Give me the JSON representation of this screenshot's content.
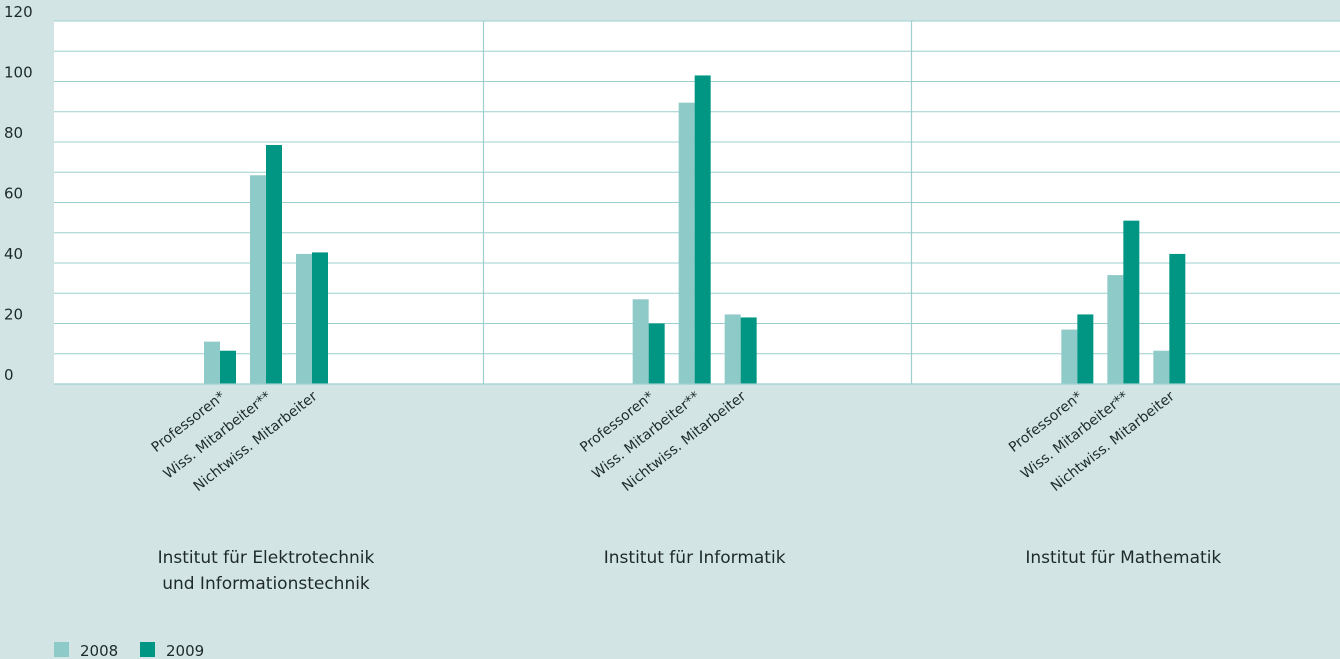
{
  "chart_data": {
    "type": "bar",
    "ylim": [
      0,
      120
    ],
    "yticks": [
      "0",
      "20",
      "40",
      "60",
      "80",
      "100",
      "120"
    ],
    "categories": [
      "Professoren*",
      "Wiss. Mitarbeiter**",
      "Nichtwiss. Mitarbeiter"
    ],
    "groups": [
      {
        "label_lines": [
          "Institut für Elektrotechnik",
          "und Informationstechnik"
        ]
      },
      {
        "label_lines": [
          "Institut für Informatik"
        ]
      },
      {
        "label_lines": [
          "Institut für Mathematik"
        ]
      }
    ],
    "series": [
      {
        "name": "2008",
        "color": "#8ecac7",
        "values": [
          [
            14,
            69,
            43
          ],
          [
            28,
            93,
            23
          ],
          [
            18,
            36,
            11
          ]
        ]
      },
      {
        "name": "2009",
        "color": "#009683",
        "values": [
          [
            11,
            79,
            43.5
          ],
          [
            20,
            102,
            22
          ],
          [
            23,
            54,
            43
          ]
        ]
      }
    ],
    "grid": true,
    "legend": "bottom-left"
  },
  "colors": {
    "background": "#d3e4e4",
    "plot_background": "#ffffff",
    "gridline": "#9ecfcf"
  }
}
